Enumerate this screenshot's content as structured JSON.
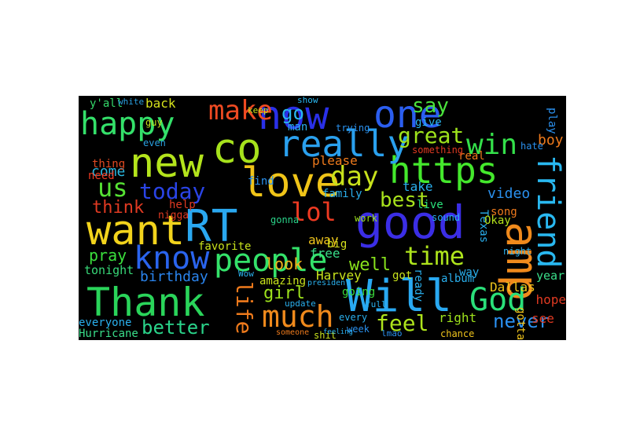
{
  "figure": {
    "words": [
      {
        "text": "now",
        "color": "#2a30e8"
      },
      {
        "text": "one",
        "color": "#2b5ef0"
      },
      {
        "text": "good",
        "color": "#3b2ee6"
      },
      {
        "text": "Thank",
        "color": "#2ad45a"
      },
      {
        "text": "want",
        "color": "#f2d31c"
      },
      {
        "text": "RT",
        "color": "#2aa8f0"
      },
      {
        "text": "love",
        "color": "#f0c418"
      },
      {
        "text": "new",
        "color": "#b4e41c"
      },
      {
        "text": "https",
        "color": "#44e82c"
      },
      {
        "text": "Will",
        "color": "#29a9f2"
      },
      {
        "text": "amp",
        "color": "#f08a1c"
      },
      {
        "text": "co",
        "color": "#a6e21c"
      },
      {
        "text": "really",
        "color": "#2aa0ee"
      },
      {
        "text": "happy",
        "color": "#34e06a"
      },
      {
        "text": "make",
        "color": "#ee4a22"
      },
      {
        "text": "people",
        "color": "#34e26a"
      },
      {
        "text": "know",
        "color": "#2a64ee"
      },
      {
        "text": "friend",
        "color": "#29b8f0"
      },
      {
        "text": "God",
        "color": "#2ae07a"
      },
      {
        "text": "day",
        "color": "#c8e21c"
      },
      {
        "text": "win",
        "color": "#34e04a"
      },
      {
        "text": "time",
        "color": "#aee41c"
      },
      {
        "text": "much",
        "color": "#f08a1c"
      },
      {
        "text": "great",
        "color": "#9ee21c"
      },
      {
        "text": "today",
        "color": "#2a44e6"
      },
      {
        "text": "us",
        "color": "#56e234"
      },
      {
        "text": "lol",
        "color": "#ee3a22"
      },
      {
        "text": "best",
        "color": "#a8e21c"
      },
      {
        "text": "think",
        "color": "#e03a22"
      },
      {
        "text": "feel",
        "color": "#aee41c"
      },
      {
        "text": "life",
        "color": "#ee7a1c"
      },
      {
        "text": "never",
        "color": "#2a90f0"
      },
      {
        "text": "go",
        "color": "#2ab8f0"
      },
      {
        "text": "say",
        "color": "#4ae23c"
      },
      {
        "text": "better",
        "color": "#2ad48a"
      },
      {
        "text": "pray",
        "color": "#3ade3c"
      },
      {
        "text": "girl",
        "color": "#9ee21c"
      },
      {
        "text": "look",
        "color": "#f0b41c"
      },
      {
        "text": "well",
        "color": "#88e21c"
      },
      {
        "text": "boy",
        "color": "#ee7a1c"
      },
      {
        "text": "video",
        "color": "#2a90ee"
      },
      {
        "text": "birthday",
        "color": "#2a84ee"
      },
      {
        "text": "tonight",
        "color": "#38d878"
      },
      {
        "text": "come",
        "color": "#2ab8e0"
      },
      {
        "text": "thing",
        "color": "#e04a22"
      },
      {
        "text": "need",
        "color": "#ee3a22"
      },
      {
        "text": "help",
        "color": "#e03a22"
      },
      {
        "text": "y'all",
        "color": "#34d86a"
      },
      {
        "text": "back",
        "color": "#d6e21c"
      },
      {
        "text": "white",
        "color": "#2aa0e0"
      },
      {
        "text": "even",
        "color": "#2aa0e0"
      },
      {
        "text": "please",
        "color": "#ee7a1c"
      },
      {
        "text": "away",
        "color": "#f0c41c"
      },
      {
        "text": "take",
        "color": "#2ab0ee"
      },
      {
        "text": "family",
        "color": "#2ab0ee"
      },
      {
        "text": "live",
        "color": "#2ae07a"
      },
      {
        "text": "free",
        "color": "#3ade8a"
      },
      {
        "text": "big",
        "color": "#d6e21c"
      },
      {
        "text": "work",
        "color": "#9ee21c"
      },
      {
        "text": "Texas",
        "color": "#2ab0ee"
      },
      {
        "text": "play",
        "color": "#2a90ee"
      },
      {
        "text": "hope",
        "color": "#e03a22"
      },
      {
        "text": "see",
        "color": "#e03a22"
      },
      {
        "text": "year",
        "color": "#3ade8a"
      },
      {
        "text": "Okay",
        "color": "#b4e21c"
      },
      {
        "text": "song",
        "color": "#ee7a1c"
      },
      {
        "text": "hate",
        "color": "#2a90ee"
      },
      {
        "text": "right",
        "color": "#9ee21c"
      },
      {
        "text": "real",
        "color": "#ee7a1c"
      },
      {
        "text": "give",
        "color": "#2ab8f0"
      },
      {
        "text": "show",
        "color": "#2ab8f0"
      },
      {
        "text": "man",
        "color": "#2ab0ee"
      },
      {
        "text": "trying",
        "color": "#2a90ee"
      },
      {
        "text": "something",
        "color": "#e03a22"
      },
      {
        "text": "find",
        "color": "#2a90ee"
      },
      {
        "text": "favorite",
        "color": "#c8e21c"
      },
      {
        "text": "amazing",
        "color": "#c8e21c"
      },
      {
        "text": "gonna",
        "color": "#2ad48a"
      },
      {
        "text": "going",
        "color": "#3ade3c"
      },
      {
        "text": "got",
        "color": "#c8e21c"
      },
      {
        "text": "ready",
        "color": "#2ab0ee"
      },
      {
        "text": "Harvey",
        "color": "#c8e21c"
      },
      {
        "text": "president",
        "color": "#2ab0ee"
      },
      {
        "text": "album",
        "color": "#2ab0ee"
      },
      {
        "text": "Dallas",
        "color": "#f0c41c"
      },
      {
        "text": "way",
        "color": "#2ab0ee"
      },
      {
        "text": "night",
        "color": "#2ab0ee"
      },
      {
        "text": "everyone",
        "color": "#2ab0ee"
      },
      {
        "text": "Hurricane",
        "color": "#3ade8a"
      },
      {
        "text": "shit",
        "color": "#c8e21c"
      },
      {
        "text": "week",
        "color": "#2a90ee"
      },
      {
        "text": "every",
        "color": "#2ab0ee"
      },
      {
        "text": "lmao",
        "color": "#2a90ee"
      },
      {
        "text": "chance",
        "color": "#f0c41c"
      },
      {
        "text": "gotta",
        "color": "#f0c41c"
      },
      {
        "text": "guy",
        "color": "#c8e21c"
      },
      {
        "text": "keep",
        "color": "#c8e21c"
      },
      {
        "text": "nigga",
        "color": "#e03a22"
      },
      {
        "text": "Wow",
        "color": "#2ab0ee"
      },
      {
        "text": "update",
        "color": "#2ab0ee"
      },
      {
        "text": "someone",
        "color": "#ee7a1c"
      },
      {
        "text": "sound",
        "color": "#2ab0ee"
      },
      {
        "text": "feeling",
        "color": "#2ab0ee"
      },
      {
        "text": "full",
        "color": "#2ab0ee"
      }
    ]
  }
}
